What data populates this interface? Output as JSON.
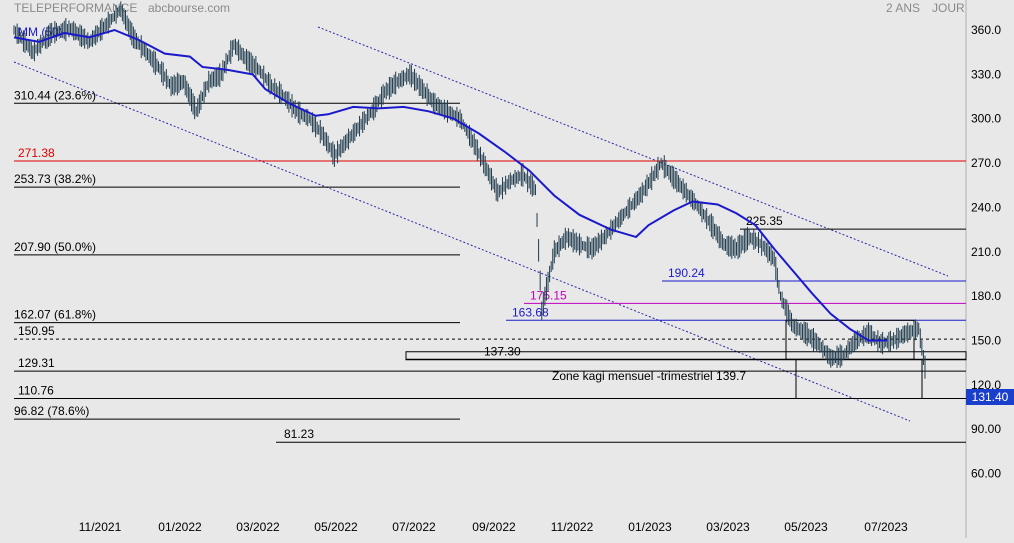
{
  "chart_data": {
    "type": "candlestick",
    "title": "TELEPERFORMANCE",
    "source": "abcbourse.com",
    "period_label": "2 ANS",
    "interval_label": "JOUR",
    "ylim": [
      48,
      378
    ],
    "y_ticks": [
      "360.0",
      "330.0",
      "300.0",
      "270.0",
      "240.0",
      "210.0",
      "180.0",
      "150.0",
      "120.0",
      "90.00",
      "60.00"
    ],
    "x_tick_labels": [
      "11/2021",
      "01/2022",
      "03/2022",
      "05/2022",
      "07/2022",
      "09/2022",
      "11/2022",
      "01/2023",
      "03/2023",
      "05/2023",
      "07/2023"
    ],
    "last_price": "131.40",
    "ma_label": "MM (50)",
    "levels": [
      {
        "label": "310.44  (23.6%)",
        "value": 310.44,
        "color": "#000000"
      },
      {
        "label": "271.38",
        "value": 271.38,
        "color": "#e00000"
      },
      {
        "label": "253.73  (38.2%)",
        "value": 253.73,
        "color": "#000000"
      },
      {
        "label": "225.35",
        "value": 225.35,
        "color": "#000000"
      },
      {
        "label": "207.90  (50.0%)",
        "value": 207.9,
        "color": "#000000"
      },
      {
        "label": "190.24",
        "value": 190.24,
        "color": "#1a1acc"
      },
      {
        "label": "175.15",
        "value": 175.15,
        "color": "#c000c0"
      },
      {
        "label": "163.68",
        "value": 163.68,
        "color": "#1a1acc"
      },
      {
        "label": "162.07  (61.8%)",
        "value": 162.07,
        "color": "#000000"
      },
      {
        "label": "150.95",
        "value": 150.95,
        "color": "#000000"
      },
      {
        "label": "137.30",
        "value": 137.3,
        "color": "#000000"
      },
      {
        "label": "129.31",
        "value": 129.31,
        "color": "#000000"
      },
      {
        "label": "110.76",
        "value": 110.76,
        "color": "#000000"
      },
      {
        "label": "96.82  (78.6%)",
        "value": 96.82,
        "color": "#000000"
      },
      {
        "label": "81.23",
        "value": 81.23,
        "color": "#000000"
      }
    ],
    "annotation": "Zone kagi mensuel -trimestriel 139.7",
    "colors": {
      "price": "#1f3b4d",
      "ma": "#1a1acc",
      "channel": "#2a2aa8",
      "background": "#e8e8e8",
      "red_level": "#e00000",
      "magenta_level": "#c000c0",
      "last_price_bg": "#1a3fcc"
    },
    "price_path": [
      [
        0,
        360
      ],
      [
        3,
        345
      ],
      [
        6,
        358
      ],
      [
        9,
        361
      ],
      [
        12,
        352
      ],
      [
        15,
        365
      ],
      [
        17,
        374
      ],
      [
        19,
        355
      ],
      [
        21,
        345
      ],
      [
        23,
        335
      ],
      [
        25,
        322
      ],
      [
        27,
        325
      ],
      [
        29,
        305
      ],
      [
        31,
        325
      ],
      [
        33,
        330
      ],
      [
        35,
        350
      ],
      [
        37,
        340
      ],
      [
        39,
        333
      ],
      [
        41,
        322
      ],
      [
        43,
        315
      ],
      [
        45,
        305
      ],
      [
        47,
        300
      ],
      [
        49,
        290
      ],
      [
        51,
        275
      ],
      [
        53,
        285
      ],
      [
        55,
        295
      ],
      [
        57,
        305
      ],
      [
        59,
        318
      ],
      [
        61,
        325
      ],
      [
        63,
        330
      ],
      [
        65,
        320
      ],
      [
        67,
        310
      ],
      [
        69,
        305
      ],
      [
        71,
        300
      ],
      [
        73,
        285
      ],
      [
        75,
        268
      ],
      [
        77,
        250
      ],
      [
        79,
        258
      ],
      [
        81,
        262
      ],
      [
        83,
        252
      ],
      [
        84,
        170
      ],
      [
        86,
        210
      ],
      [
        88,
        220
      ],
      [
        90,
        215
      ],
      [
        92,
        212
      ],
      [
        94,
        220
      ],
      [
        96,
        230
      ],
      [
        98,
        240
      ],
      [
        100,
        250
      ],
      [
        102,
        263
      ],
      [
        103,
        270
      ],
      [
        105,
        260
      ],
      [
        107,
        250
      ],
      [
        109,
        240
      ],
      [
        111,
        228
      ],
      [
        113,
        215
      ],
      [
        115,
        212
      ],
      [
        117,
        220
      ],
      [
        119,
        215
      ],
      [
        121,
        205
      ],
      [
        122,
        180
      ],
      [
        124,
        160
      ],
      [
        126,
        155
      ],
      [
        128,
        148
      ],
      [
        130,
        138
      ],
      [
        132,
        140
      ],
      [
        134,
        150
      ],
      [
        136,
        155
      ],
      [
        138,
        148
      ],
      [
        140,
        150
      ],
      [
        142,
        155
      ],
      [
        144,
        158
      ],
      [
        145,
        132
      ]
    ],
    "ma_path": [
      [
        0,
        355
      ],
      [
        4,
        352
      ],
      [
        8,
        358
      ],
      [
        12,
        355
      ],
      [
        16,
        360
      ],
      [
        20,
        353
      ],
      [
        24,
        344
      ],
      [
        28,
        342
      ],
      [
        30,
        335
      ],
      [
        34,
        333
      ],
      [
        38,
        330
      ],
      [
        40,
        320
      ],
      [
        44,
        310
      ],
      [
        48,
        302
      ],
      [
        50,
        303
      ],
      [
        54,
        308
      ],
      [
        58,
        307
      ],
      [
        62,
        308
      ],
      [
        66,
        305
      ],
      [
        70,
        300
      ],
      [
        74,
        290
      ],
      [
        78,
        278
      ],
      [
        82,
        265
      ],
      [
        86,
        248
      ],
      [
        90,
        235
      ],
      [
        95,
        225
      ],
      [
        99,
        220
      ],
      [
        101,
        228
      ],
      [
        105,
        238
      ],
      [
        108,
        244
      ],
      [
        112,
        242
      ],
      [
        115,
        236
      ],
      [
        118,
        228
      ],
      [
        121,
        212
      ],
      [
        124,
        197
      ],
      [
        127,
        182
      ],
      [
        130,
        168
      ],
      [
        133,
        158
      ],
      [
        136,
        150
      ],
      [
        139,
        150
      ]
    ]
  }
}
